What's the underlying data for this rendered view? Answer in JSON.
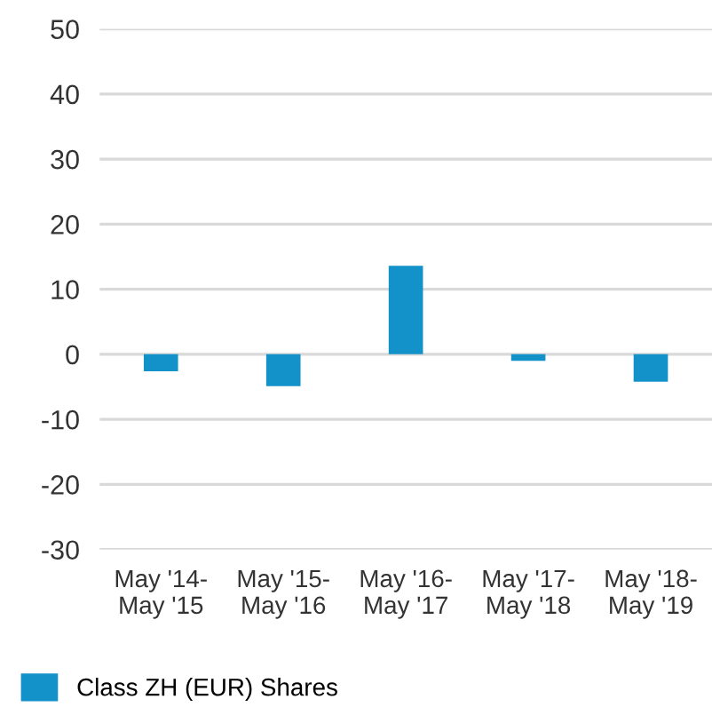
{
  "chart_data": {
    "type": "bar",
    "categories": [
      "May '14-\nMay '15",
      "May '15-\nMay '16",
      "May '16-\nMay '17",
      "May '17-\nMay '18",
      "May '18-\nMay '19"
    ],
    "series": [
      {
        "name": "Class ZH (EUR) Shares",
        "color": "#1391c9",
        "values": [
          -2.6,
          -4.9,
          13.6,
          -1.0,
          -4.2
        ]
      }
    ],
    "ylim": [
      -30,
      50
    ],
    "yticks": [
      -30,
      -20,
      -10,
      0,
      10,
      20,
      30,
      40,
      50
    ],
    "grid": "y",
    "legend": "bottom left"
  }
}
